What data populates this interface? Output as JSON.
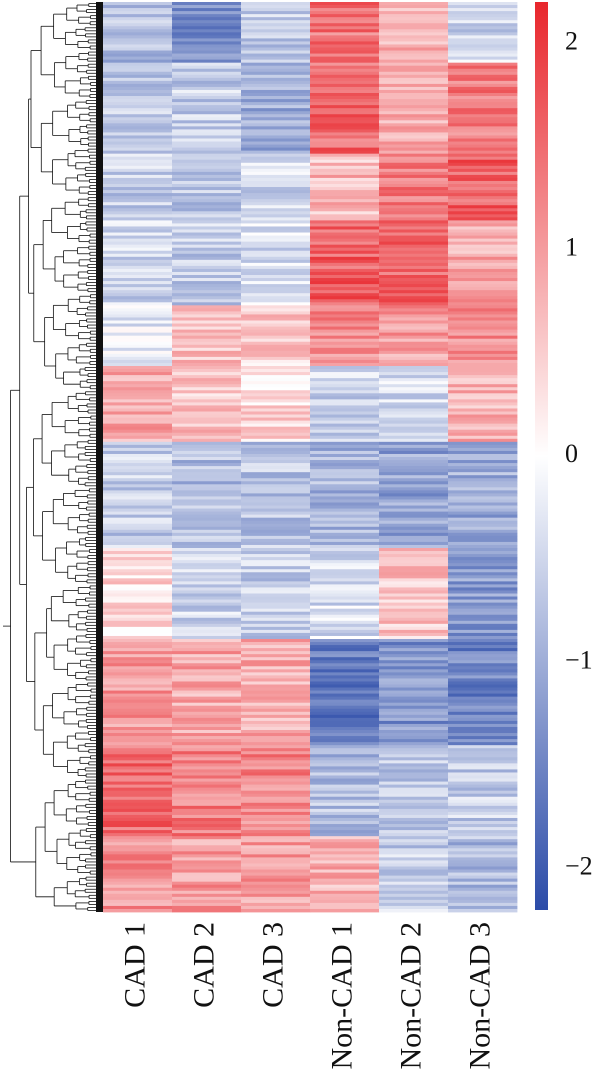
{
  "chart_data": {
    "type": "heatmap",
    "title": "",
    "xlabel": "",
    "ylabel": "",
    "columns": [
      "CAD 1",
      "CAD 2",
      "CAD 3",
      "Non-CAD 1",
      "Non-CAD 2",
      "Non-CAD 3"
    ],
    "row_dendrogram": true,
    "row_count": 300,
    "colorbar": {
      "range": [
        -2.2,
        2.2
      ],
      "ticks": [
        -2,
        -1,
        0,
        1,
        2
      ],
      "tick_labels": [
        "−2",
        "−1",
        "0",
        "1",
        "2"
      ],
      "colors": {
        "low": "#2b4ba8",
        "mid": "#ffffff",
        "high": "#e8262c"
      }
    },
    "row_blocks": [
      {
        "start": 1,
        "end": 20,
        "values": [
          -0.8,
          -1.4,
          -0.6,
          1.4,
          0.7,
          -0.5
        ]
      },
      {
        "start": 21,
        "end": 50,
        "values": [
          -0.7,
          -0.6,
          -1.0,
          1.5,
          0.9,
          1.3
        ]
      },
      {
        "start": 51,
        "end": 72,
        "values": [
          -0.6,
          -0.7,
          -0.5,
          0.7,
          1.4,
          1.6
        ]
      },
      {
        "start": 73,
        "end": 100,
        "values": [
          -0.5,
          -0.6,
          -0.4,
          1.6,
          1.5,
          0.9
        ]
      },
      {
        "start": 101,
        "end": 120,
        "values": [
          -0.3,
          0.7,
          0.5,
          1.2,
          1.0,
          1.1
        ]
      },
      {
        "start": 121,
        "end": 145,
        "values": [
          0.9,
          0.6,
          0.4,
          -0.5,
          -0.4,
          0.8
        ]
      },
      {
        "start": 146,
        "end": 180,
        "values": [
          -0.6,
          -0.8,
          -0.7,
          -0.9,
          -1.1,
          -1.0
        ]
      },
      {
        "start": 181,
        "end": 210,
        "values": [
          0.4,
          -0.5,
          -0.6,
          -0.4,
          0.6,
          -1.2
        ]
      },
      {
        "start": 211,
        "end": 245,
        "values": [
          1.0,
          0.9,
          0.8,
          -1.6,
          -1.3,
          -1.5
        ]
      },
      {
        "start": 246,
        "end": 275,
        "values": [
          1.5,
          1.3,
          1.2,
          -0.8,
          -0.7,
          -0.6
        ]
      },
      {
        "start": 276,
        "end": 300,
        "values": [
          1.1,
          1.0,
          1.0,
          0.8,
          -0.6,
          -0.8
        ]
      }
    ]
  }
}
